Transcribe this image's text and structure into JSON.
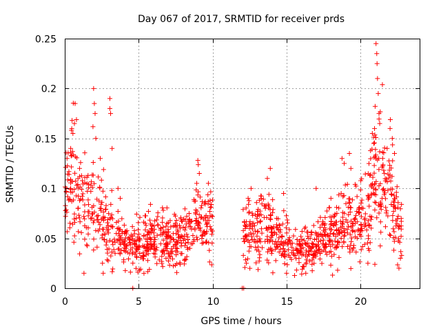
{
  "chart_data": {
    "type": "scatter",
    "title": "Day 067 of 2017, SRMTID for receiver prds",
    "xlabel": "GPS time / hours",
    "ylabel": "SRMTID / TECUs",
    "xlim": [
      0,
      24
    ],
    "ylim": [
      0,
      0.25
    ],
    "x_ticks": [
      0,
      5,
      10,
      15,
      20
    ],
    "y_ticks": [
      0,
      0.05,
      0.1,
      0.15,
      0.2,
      0.25
    ],
    "x_tick_labels": [
      "0",
      "5",
      "10",
      "15",
      "20"
    ],
    "y_tick_labels": [
      "0",
      "0.05",
      "0.1",
      "0.15",
      "0.2",
      "0.25"
    ],
    "grid": true,
    "marker": "+",
    "color": "#ff0000",
    "trend": [
      [
        0.0,
        0.095
      ],
      [
        0.5,
        0.11
      ],
      [
        1.0,
        0.09
      ],
      [
        1.5,
        0.075
      ],
      [
        2.0,
        0.09
      ],
      [
        2.5,
        0.075
      ],
      [
        3.0,
        0.06
      ],
      [
        3.5,
        0.05
      ],
      [
        4.0,
        0.045
      ],
      [
        4.5,
        0.04
      ],
      [
        5.0,
        0.045
      ],
      [
        5.5,
        0.048
      ],
      [
        6.0,
        0.05
      ],
      [
        6.5,
        0.05
      ],
      [
        7.0,
        0.045
      ],
      [
        7.5,
        0.045
      ],
      [
        8.0,
        0.05
      ],
      [
        8.5,
        0.055
      ],
      [
        9.0,
        0.065
      ],
      [
        9.5,
        0.065
      ],
      [
        10.0,
        0.06
      ],
      [
        12.0,
        0.05
      ],
      [
        12.5,
        0.055
      ],
      [
        13.0,
        0.06
      ],
      [
        13.5,
        0.065
      ],
      [
        14.0,
        0.06
      ],
      [
        14.5,
        0.05
      ],
      [
        15.0,
        0.045
      ],
      [
        15.5,
        0.04
      ],
      [
        16.0,
        0.04
      ],
      [
        16.5,
        0.04
      ],
      [
        17.0,
        0.045
      ],
      [
        17.5,
        0.05
      ],
      [
        18.0,
        0.055
      ],
      [
        18.5,
        0.06
      ],
      [
        19.0,
        0.065
      ],
      [
        19.5,
        0.06
      ],
      [
        20.0,
        0.065
      ],
      [
        20.5,
        0.08
      ],
      [
        21.0,
        0.11
      ],
      [
        21.5,
        0.1
      ],
      [
        22.0,
        0.09
      ],
      [
        22.5,
        0.07
      ],
      [
        22.7,
        0.055
      ]
    ],
    "gaps": [
      [
        10.0,
        12.0
      ]
    ],
    "notable_points": [
      [
        0.15,
        0.13
      ],
      [
        0.4,
        0.14
      ],
      [
        0.55,
        0.155
      ],
      [
        0.65,
        0.165
      ],
      [
        0.7,
        0.185
      ],
      [
        1.0,
        0.12
      ],
      [
        1.5,
        0.105
      ],
      [
        1.95,
        0.2
      ],
      [
        2.0,
        0.185
      ],
      [
        2.05,
        0.175
      ],
      [
        2.1,
        0.15
      ],
      [
        2.4,
        0.13
      ],
      [
        3.05,
        0.19
      ],
      [
        3.05,
        0.18
      ],
      [
        3.1,
        0.175
      ],
      [
        3.2,
        0.14
      ],
      [
        3.6,
        0.1
      ],
      [
        3.75,
        0.09
      ],
      [
        2.6,
        0.015
      ],
      [
        2.55,
        0.025
      ],
      [
        4.6,
        0.0
      ],
      [
        9.0,
        0.128
      ],
      [
        9.1,
        0.115
      ],
      [
        12.0,
        0.0
      ],
      [
        12.1,
        0.0
      ],
      [
        12.4,
        0.09
      ],
      [
        12.6,
        0.1
      ],
      [
        13.7,
        0.11
      ],
      [
        13.9,
        0.12
      ],
      [
        14.8,
        0.095
      ],
      [
        15.0,
        0.015
      ],
      [
        16.3,
        0.015
      ],
      [
        17.0,
        0.1
      ],
      [
        18.0,
        0.09
      ],
      [
        18.4,
        0.075
      ],
      [
        18.75,
        0.13
      ],
      [
        18.9,
        0.125
      ],
      [
        19.25,
        0.135
      ],
      [
        19.35,
        0.12
      ],
      [
        20.5,
        0.025
      ],
      [
        20.8,
        0.155
      ],
      [
        20.9,
        0.145
      ],
      [
        20.95,
        0.16
      ],
      [
        21.05,
        0.245
      ],
      [
        21.1,
        0.235
      ],
      [
        21.12,
        0.225
      ],
      [
        21.15,
        0.21
      ],
      [
        21.2,
        0.195
      ],
      [
        21.25,
        0.175
      ],
      [
        21.3,
        0.165
      ],
      [
        21.5,
        0.13
      ],
      [
        21.8,
        0.14
      ],
      [
        22.0,
        0.16
      ],
      [
        22.15,
        0.15
      ],
      [
        22.3,
        0.135
      ],
      [
        22.6,
        0.02
      ],
      [
        22.7,
        0.03
      ]
    ]
  }
}
